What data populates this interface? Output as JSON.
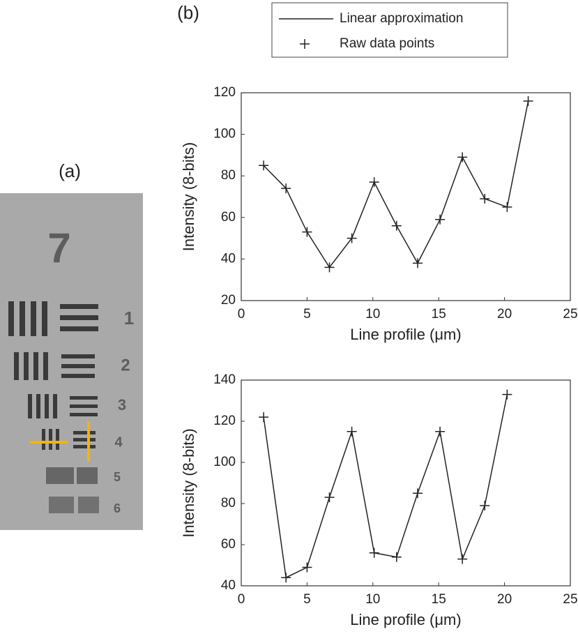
{
  "panel_labels": [
    "(a)",
    "(b)"
  ],
  "image_labels": [
    "7",
    "1",
    "2",
    "3",
    "4",
    "5",
    "6"
  ],
  "legend": [
    "Linear approximation",
    "Raw data points"
  ],
  "chart_data": [
    {
      "type": "line",
      "x_label": "Line profile (μm)",
      "y_label": "Intensity (8-bits)",
      "x": [
        1.7,
        3.4,
        5.0,
        6.7,
        8.4,
        10.1,
        11.8,
        13.4,
        15.1,
        16.8,
        18.5,
        20.2,
        21.8
      ],
      "values": [
        85,
        74,
        53,
        36,
        50,
        77,
        56,
        38,
        59,
        89,
        69,
        65,
        116
      ],
      "color": "#222222",
      "xlim": [
        0,
        25
      ],
      "xticks": [
        0,
        5,
        10,
        15,
        20,
        25
      ],
      "ylim": [
        20,
        120
      ],
      "yticks": [
        20,
        40,
        60,
        80,
        100,
        120
      ]
    },
    {
      "type": "line",
      "x_label": "Line profile (μm)",
      "y_label": "Intensity (8-bits)",
      "x": [
        1.7,
        3.4,
        5.0,
        6.7,
        8.4,
        10.1,
        11.8,
        13.4,
        15.1,
        16.8,
        18.5,
        20.2
      ],
      "values": [
        122,
        44,
        49,
        83,
        115,
        56,
        54,
        85,
        115,
        53,
        79,
        133
      ],
      "color": "#222222",
      "xlim": [
        0,
        25
      ],
      "xticks": [
        0,
        5,
        10,
        15,
        20,
        25
      ],
      "ylim": [
        40,
        140
      ],
      "yticks": [
        40,
        60,
        80,
        100,
        120,
        140
      ]
    }
  ]
}
